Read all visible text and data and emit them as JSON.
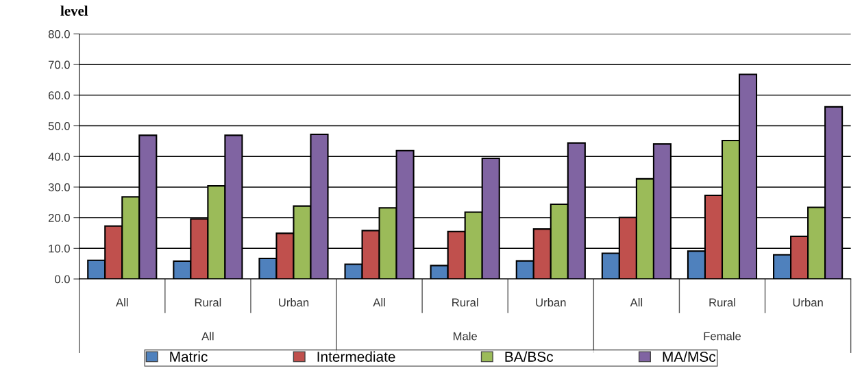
{
  "chart_data": {
    "type": "bar",
    "title": "level",
    "categories": [
      "All",
      "Rural",
      "Urban",
      "All",
      "Rural",
      "Urban",
      "All",
      "Rural",
      "Urban"
    ],
    "series": [
      {
        "name": "Matric",
        "color": "#4f81bd",
        "values": [
          6.1,
          5.8,
          6.7,
          4.8,
          4.4,
          5.9,
          8.4,
          9.1,
          7.9
        ]
      },
      {
        "name": "Intermediate",
        "color": "#c0504d",
        "values": [
          17.3,
          19.6,
          14.9,
          15.8,
          15.5,
          16.3,
          20.1,
          27.3,
          13.9
        ]
      },
      {
        "name": "BA/BSc",
        "color": "#9bbb59",
        "values": [
          26.8,
          30.4,
          23.8,
          23.2,
          21.8,
          24.4,
          32.7,
          45.2,
          23.4
        ]
      },
      {
        "name": "MA/MSc",
        "color": "#8064a2",
        "values": [
          46.9,
          46.9,
          47.2,
          41.9,
          39.4,
          44.4,
          44.1,
          66.8,
          56.2
        ]
      }
    ],
    "annotations": [
      "All",
      "Male",
      "Female"
    ],
    "ylim": [
      0,
      80
    ],
    "yticks": [
      {
        "value": 0,
        "label": "0.0"
      },
      {
        "value": 10,
        "label": "10.0"
      },
      {
        "value": 20,
        "label": "20.0"
      },
      {
        "value": 30,
        "label": "30.0"
      },
      {
        "value": 40,
        "label": "40.0"
      },
      {
        "value": 50,
        "label": "50.0"
      },
      {
        "value": 60,
        "label": "60.0"
      },
      {
        "value": 70,
        "label": "70.0"
      },
      {
        "value": 80,
        "label": "80.0"
      }
    ],
    "grid": "y",
    "legend": "bottom"
  }
}
